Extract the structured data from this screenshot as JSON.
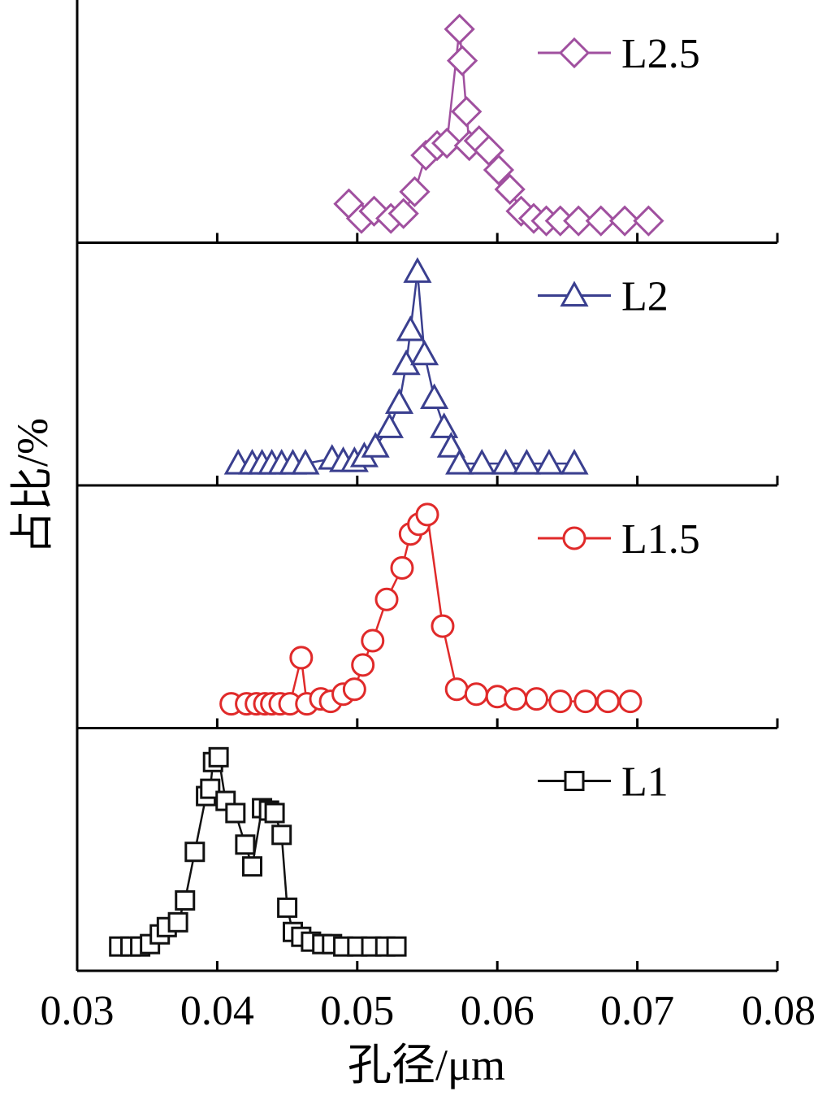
{
  "chart_data": {
    "type": "line",
    "layout": "stacked-panels",
    "xlabel": "孔径/μm",
    "ylabel": "占比/%",
    "xlim": [
      0.03,
      0.08
    ],
    "xticks": [
      "0.03",
      "0.04",
      "0.05",
      "0.06",
      "0.07",
      "0.08"
    ],
    "y_ticks_shown": false,
    "legend_position": "top-right of each panel",
    "series": [
      {
        "name": "L2.5",
        "marker": "diamond",
        "color": "#a0509f",
        "x": [
          0.0494,
          0.0503,
          0.0512,
          0.0524,
          0.0533,
          0.0541,
          0.0549,
          0.0557,
          0.0564,
          0.0573,
          0.0575,
          0.0578,
          0.058,
          0.0587,
          0.0594,
          0.0601,
          0.0609,
          0.0617,
          0.0626,
          0.0635,
          0.0645,
          0.0658,
          0.0674,
          0.0691,
          0.0708
        ],
        "y": [
          0.16,
          0.1,
          0.13,
          0.1,
          0.12,
          0.21,
          0.36,
          0.4,
          0.41,
          0.88,
          0.75,
          0.54,
          0.4,
          0.42,
          0.38,
          0.3,
          0.22,
          0.13,
          0.1,
          0.09,
          0.09,
          0.09,
          0.09,
          0.09,
          0.09
        ]
      },
      {
        "name": "L2",
        "marker": "triangle",
        "color": "#3a3f8f",
        "x": [
          0.0415,
          0.0425,
          0.0432,
          0.0439,
          0.0446,
          0.0454,
          0.0463,
          0.0482,
          0.049,
          0.0498,
          0.0505,
          0.0513,
          0.0523,
          0.053,
          0.0535,
          0.0538,
          0.0543,
          0.0548,
          0.0555,
          0.0562,
          0.0567,
          0.0573,
          0.0589,
          0.0606,
          0.0621,
          0.0637,
          0.0655
        ],
        "y": [
          0.09,
          0.09,
          0.09,
          0.09,
          0.09,
          0.09,
          0.09,
          0.11,
          0.1,
          0.1,
          0.12,
          0.16,
          0.24,
          0.34,
          0.5,
          0.64,
          0.88,
          0.54,
          0.36,
          0.24,
          0.16,
          0.09,
          0.09,
          0.09,
          0.09,
          0.09,
          0.09
        ]
      },
      {
        "name": "L1.5",
        "marker": "circle",
        "color": "#e02a2a",
        "x": [
          0.041,
          0.0421,
          0.0428,
          0.0434,
          0.0439,
          0.0445,
          0.0452,
          0.046,
          0.0464,
          0.0474,
          0.0481,
          0.049,
          0.0498,
          0.0504,
          0.0511,
          0.0521,
          0.0532,
          0.0538,
          0.0544,
          0.055,
          0.0561,
          0.0571,
          0.0585,
          0.06,
          0.0613,
          0.0628,
          0.0645,
          0.0663,
          0.0679,
          0.0695
        ],
        "y": [
          0.1,
          0.1,
          0.1,
          0.1,
          0.1,
          0.1,
          0.1,
          0.29,
          0.1,
          0.12,
          0.11,
          0.14,
          0.16,
          0.26,
          0.36,
          0.53,
          0.66,
          0.8,
          0.84,
          0.88,
          0.42,
          0.16,
          0.14,
          0.13,
          0.12,
          0.12,
          0.11,
          0.11,
          0.11,
          0.11
        ]
      },
      {
        "name": "L1",
        "marker": "square",
        "color": "#111111",
        "x": [
          0.033,
          0.0338,
          0.0345,
          0.0352,
          0.0359,
          0.0364,
          0.0372,
          0.0377,
          0.0384,
          0.0392,
          0.0395,
          0.0397,
          0.0401,
          0.0406,
          0.0413,
          0.042,
          0.0425,
          0.0432,
          0.0437,
          0.0441,
          0.0446,
          0.045,
          0.0454,
          0.046,
          0.0467,
          0.0475,
          0.0482,
          0.049,
          0.05,
          0.051,
          0.052,
          0.0528
        ],
        "y": [
          0.1,
          0.1,
          0.1,
          0.11,
          0.15,
          0.18,
          0.2,
          0.29,
          0.49,
          0.72,
          0.75,
          0.86,
          0.88,
          0.7,
          0.65,
          0.52,
          0.43,
          0.67,
          0.66,
          0.65,
          0.56,
          0.26,
          0.16,
          0.14,
          0.12,
          0.11,
          0.11,
          0.1,
          0.1,
          0.1,
          0.1,
          0.1
        ]
      }
    ]
  }
}
